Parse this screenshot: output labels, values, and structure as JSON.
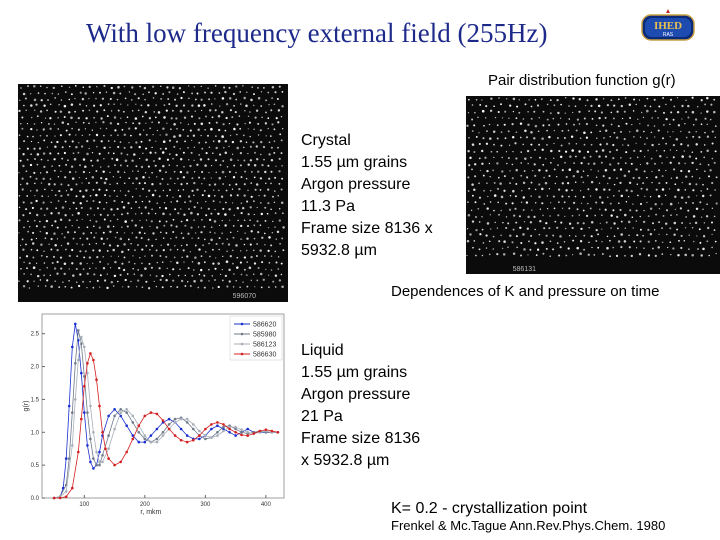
{
  "title": "With low frequency external field (255Hz)",
  "logo": {
    "top_text": "IHED",
    "bottom_text": "RAS"
  },
  "pair_caption": "Pair distribution function g(r)",
  "dependences_caption": "Dependences of K and pressure on time",
  "crystal_block": [
    "Crystal",
    "1.55 µm grains",
    "Argon pressure",
    "11.3 Pa",
    "Frame size 8136 x",
    "5932.8 µm"
  ],
  "liquid_block": [
    "Liquid",
    "1.55 µm grains",
    "Argon pressure",
    "21 Pa",
    "Frame size 8136",
    "x 5932.8 µm"
  ],
  "k_note": "K= 0.2 - crystallization point",
  "reference": "Frenkel & Mc.Tague Ann.Rev.Phys.Chem. 1980",
  "photo_left_label": "596070",
  "photo_right_label": "586131",
  "chart_data": {
    "type": "line",
    "title": "",
    "xlabel": "r, mkm",
    "ylabel": "g(r)",
    "xlim": [
      30,
      430
    ],
    "ylim": [
      0,
      2.8
    ],
    "xticks": [
      100,
      200,
      300,
      400
    ],
    "yticks": [
      0.0,
      0.5,
      1.0,
      1.5,
      2.0,
      2.5
    ],
    "legend_position": "top-right",
    "series": [
      {
        "name": "586620",
        "color": "#1a2fd0",
        "x": [
          50,
          60,
          65,
          70,
          75,
          80,
          85,
          90,
          95,
          100,
          105,
          110,
          115,
          120,
          125,
          130,
          140,
          150,
          160,
          170,
          180,
          190,
          200,
          210,
          220,
          230,
          240,
          250,
          260,
          270,
          280,
          290,
          300,
          310,
          320,
          330,
          340,
          350,
          360,
          370,
          380,
          390,
          400,
          410,
          420
        ],
        "y": [
          0.0,
          0.02,
          0.15,
          0.6,
          1.4,
          2.3,
          2.65,
          2.4,
          1.9,
          1.3,
          0.8,
          0.55,
          0.45,
          0.5,
          0.7,
          0.95,
          1.25,
          1.35,
          1.25,
          1.1,
          0.95,
          0.85,
          0.85,
          0.95,
          1.05,
          1.15,
          1.2,
          1.15,
          1.05,
          0.95,
          0.9,
          0.9,
          0.95,
          1.05,
          1.1,
          1.05,
          1.0,
          0.95,
          1.0,
          1.05,
          1.0,
          1.0,
          1.0,
          1.0,
          1.0
        ]
      },
      {
        "name": "585980",
        "color": "#6f7a8a",
        "x": [
          50,
          60,
          70,
          75,
          80,
          85,
          90,
          95,
          100,
          105,
          110,
          115,
          120,
          125,
          130,
          140,
          150,
          160,
          170,
          180,
          190,
          200,
          210,
          220,
          230,
          240,
          250,
          260,
          270,
          280,
          290,
          300,
          310,
          320,
          330,
          340,
          350,
          360,
          370,
          380,
          390,
          400,
          410,
          420
        ],
        "y": [
          0.0,
          0.02,
          0.2,
          0.6,
          1.3,
          2.05,
          2.55,
          2.35,
          1.85,
          1.3,
          0.9,
          0.6,
          0.5,
          0.5,
          0.65,
          0.95,
          1.25,
          1.35,
          1.3,
          1.15,
          1.0,
          0.9,
          0.85,
          0.9,
          1.0,
          1.12,
          1.2,
          1.22,
          1.15,
          1.05,
          0.95,
          0.9,
          0.92,
          1.0,
          1.08,
          1.1,
          1.05,
          1.0,
          0.98,
          1.0,
          1.02,
          1.0,
          1.0,
          1.0
        ]
      },
      {
        "name": "586123",
        "color": "#a8aeb8",
        "x": [
          50,
          60,
          70,
          80,
          85,
          90,
          95,
          100,
          105,
          110,
          115,
          120,
          125,
          130,
          140,
          150,
          160,
          170,
          180,
          190,
          200,
          210,
          220,
          230,
          240,
          250,
          260,
          270,
          280,
          290,
          300,
          310,
          320,
          330,
          340,
          350,
          360,
          370,
          380,
          390,
          400,
          410,
          420
        ],
        "y": [
          0.0,
          0.02,
          0.1,
          0.8,
          1.5,
          2.1,
          2.45,
          2.3,
          1.9,
          1.4,
          1.0,
          0.7,
          0.55,
          0.55,
          0.75,
          1.05,
          1.3,
          1.35,
          1.25,
          1.1,
          0.95,
          0.85,
          0.85,
          0.95,
          1.05,
          1.15,
          1.2,
          1.2,
          1.12,
          1.02,
          0.95,
          0.92,
          0.95,
          1.02,
          1.08,
          1.08,
          1.04,
          1.0,
          0.98,
          1.0,
          1.02,
          1.0,
          1.0
        ]
      },
      {
        "name": "586630",
        "color": "#d42020",
        "x": [
          50,
          60,
          70,
          80,
          90,
          95,
          100,
          105,
          110,
          115,
          120,
          125,
          130,
          135,
          140,
          150,
          160,
          170,
          180,
          190,
          200,
          210,
          220,
          230,
          240,
          250,
          260,
          270,
          280,
          290,
          300,
          310,
          320,
          330,
          340,
          350,
          360,
          370,
          380,
          390,
          400,
          410,
          420
        ],
        "y": [
          0.0,
          0.0,
          0.02,
          0.15,
          0.7,
          1.2,
          1.7,
          2.05,
          2.2,
          2.1,
          1.8,
          1.4,
          1.0,
          0.75,
          0.6,
          0.5,
          0.55,
          0.7,
          0.9,
          1.1,
          1.25,
          1.3,
          1.28,
          1.18,
          1.05,
          0.95,
          0.88,
          0.85,
          0.88,
          0.95,
          1.05,
          1.12,
          1.15,
          1.12,
          1.05,
          1.0,
          0.96,
          0.95,
          0.98,
          1.02,
          1.04,
          1.02,
          1.0
        ]
      }
    ]
  }
}
